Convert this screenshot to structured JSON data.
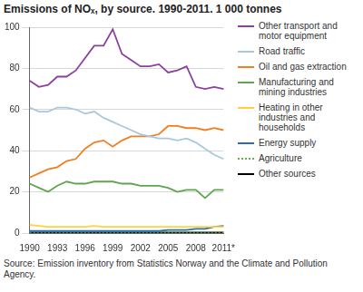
{
  "chart_data": {
    "type": "line",
    "title": "Emissions of NOₓ, by source. 1990-2011. 1 000 tonnes",
    "source": "Source: Emission inventory from Statistics Norway and the Climate and Pollution Agency.",
    "categories": [
      "1990",
      null,
      null,
      "1993",
      null,
      null,
      "1996",
      null,
      null,
      "1999",
      null,
      null,
      "2002",
      null,
      null,
      "2005",
      null,
      null,
      "2008",
      null,
      null,
      "2011*"
    ],
    "series": [
      {
        "name": "Other transport and motor equipment",
        "color": "#8b3f9e",
        "line_style": "solid",
        "values": [
          74,
          71,
          72,
          76,
          76,
          79,
          85,
          91,
          91,
          99,
          87,
          84,
          81,
          81,
          82,
          78,
          79,
          81,
          71,
          70,
          71,
          70
        ]
      },
      {
        "name": "Road traffic",
        "color": "#a9c8e0",
        "line_style": "solid",
        "values": [
          61,
          59,
          59,
          61,
          61,
          60,
          58,
          59,
          56,
          54,
          52,
          50,
          48,
          47,
          46,
          46,
          45,
          46,
          44,
          41,
          38,
          36
        ]
      },
      {
        "name": "Oil and gas extraction",
        "color": "#f07f22",
        "line_style": "solid",
        "values": [
          27,
          29,
          31,
          32,
          35,
          36,
          41,
          44,
          45,
          42,
          45,
          47,
          47,
          47,
          48,
          52,
          52,
          51,
          51,
          50,
          51,
          50
        ]
      },
      {
        "name": "Manufacturing and mining industries",
        "color": "#5fa54e",
        "line_style": "solid",
        "values": [
          24,
          22,
          20,
          23,
          25,
          24,
          24,
          25,
          25,
          25,
          24,
          24,
          23,
          23,
          23,
          22,
          20,
          21,
          21,
          17,
          21,
          21
        ]
      },
      {
        "name": "Heating in other industries and households",
        "color": "#ffd33d",
        "line_style": "solid",
        "values": [
          4,
          3.5,
          3,
          3,
          3,
          3,
          3,
          3.5,
          3,
          3,
          3,
          3,
          3,
          3,
          3,
          3,
          3,
          3,
          3,
          3,
          3,
          3
        ]
      },
      {
        "name": "Energy supply",
        "color": "#2a6db0",
        "line_style": "solid",
        "values": [
          1,
          1,
          1,
          1,
          1,
          1,
          1,
          1,
          1,
          1,
          1,
          1,
          1,
          1,
          1,
          1.5,
          1.5,
          1.5,
          2,
          2,
          3,
          3.5
        ]
      },
      {
        "name": "Agriculture",
        "color": "#6aaf4a",
        "line_style": "dotted",
        "values": [
          0.5,
          0.5,
          0.5,
          0.5,
          0.5,
          0.5,
          0.5,
          0.5,
          0.5,
          0.5,
          0.5,
          0.5,
          0.5,
          0.5,
          0.5,
          0.5,
          0.5,
          0.5,
          0.5,
          0.5,
          0.5,
          0.5
        ]
      },
      {
        "name": "Other sources",
        "color": "#000000",
        "line_style": "solid",
        "values": [
          0.3,
          0.3,
          0.3,
          0.3,
          0.3,
          0.3,
          0.3,
          0.3,
          0.3,
          0.3,
          0.3,
          0.3,
          0.3,
          0.3,
          0.3,
          0.3,
          0.3,
          0.3,
          0.3,
          0.3,
          0.3,
          0.3
        ]
      }
    ],
    "ylim": [
      0,
      100
    ],
    "yticks": [
      0,
      20,
      40,
      60,
      80,
      100
    ],
    "grid": true,
    "legend": "right"
  }
}
